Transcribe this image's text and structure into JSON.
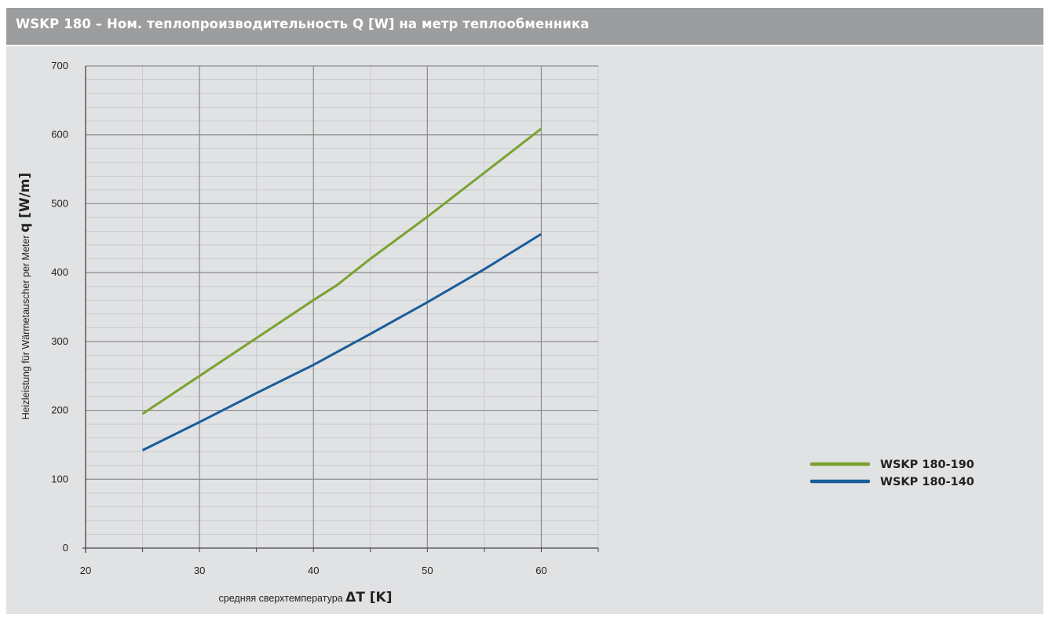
{
  "header": {
    "title_prefix": "WSKP 180 – ",
    "title_main": "Ном. теплопроизводительность  Q [W] на метр теплообменника"
  },
  "chart_data": {
    "type": "line",
    "title": "WSKP 180 – Ном. теплопроизводительность  Q [W] на метр теплообменника",
    "ylabel_prefix": "Heizleistung für Wärmetauscher per Meter ",
    "ylabel_bold": "q [W/m]",
    "xlabel_prefix": "средняя сверхтемпература ",
    "xlabel_bold": "ΔT [K]",
    "xlim": [
      20,
      65
    ],
    "ylim": [
      0,
      700
    ],
    "x_ticks": [
      20,
      30,
      40,
      50,
      60
    ],
    "y_ticks": [
      0,
      100,
      200,
      300,
      400,
      500,
      600,
      700
    ],
    "grid": true,
    "legend_position": "right",
    "series": [
      {
        "name": "WSKP 180-190",
        "color": "#7aa22f",
        "x": [
          25,
          30,
          35,
          40,
          42,
          45,
          50,
          55,
          60
        ],
        "y": [
          195,
          250,
          305,
          360,
          381,
          420,
          481,
          545,
          609
        ]
      },
      {
        "name": "WSKP 180-140",
        "color": "#1a5d99",
        "x": [
          25,
          30,
          35,
          40,
          45,
          50,
          55,
          60
        ],
        "y": [
          142,
          183,
          225,
          266,
          311,
          357,
          405,
          456
        ]
      }
    ]
  }
}
